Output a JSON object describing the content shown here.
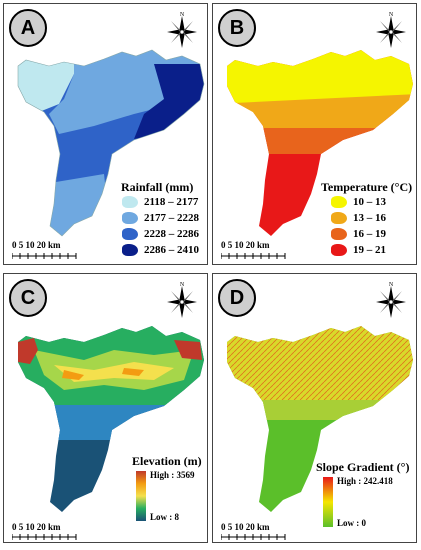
{
  "panels": {
    "a": {
      "letter": "A",
      "legend_title": "Rainfall (mm)",
      "classes": [
        {
          "label": "2118 – 2177",
          "color": "#bfe8ef"
        },
        {
          "label": "2177 – 2228",
          "color": "#6fa8e0"
        },
        {
          "label": "2228 – 2286",
          "color": "#2f63c8"
        },
        {
          "label": "2286 – 2410",
          "color": "#0a1f8a"
        }
      ],
      "scale_text": "0  5 10    20 km"
    },
    "b": {
      "letter": "B",
      "legend_title": "Temperature (°C)",
      "classes": [
        {
          "label": "10 – 13",
          "color": "#f5f500"
        },
        {
          "label": "13 – 16",
          "color": "#f0a818"
        },
        {
          "label": "16 – 19",
          "color": "#e8641c"
        },
        {
          "label": "19 – 21",
          "color": "#e81818"
        }
      ],
      "scale_text": "0  5 10    20 km"
    },
    "c": {
      "letter": "C",
      "legend_title": "Elevation (m)",
      "high_label": "High : 3569",
      "low_label": "Low : 8",
      "colors": [
        "#c0392b",
        "#f39c12",
        "#f4e04d",
        "#27ae60",
        "#1a5276"
      ],
      "scale_text": "0  5 10    20 km"
    },
    "d": {
      "letter": "D",
      "legend_title": "Slope Gradient (°)",
      "high_label": "High : 242.418",
      "low_label": "Low : 0",
      "colors": [
        "#e81818",
        "#f5e600",
        "#5bbf2a"
      ],
      "scale_text": "0  5 10    20 km"
    }
  },
  "north_letter": "N"
}
